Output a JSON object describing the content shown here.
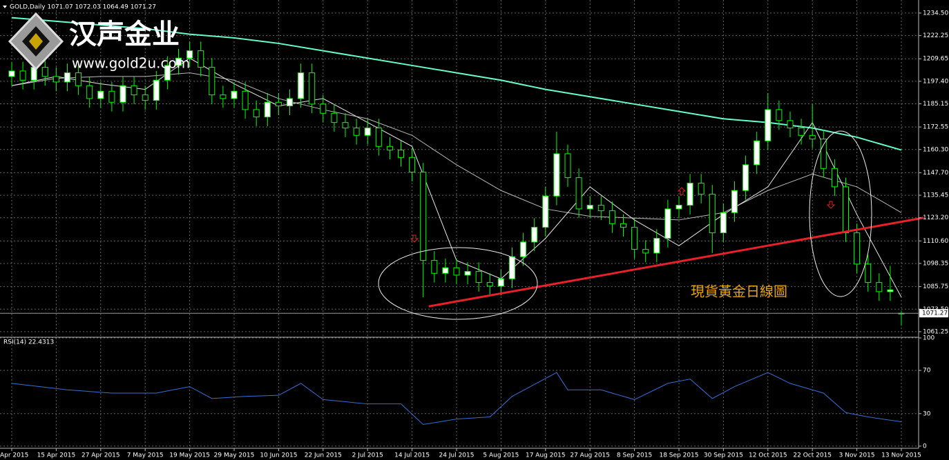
{
  "logo": {
    "name": "汉声金业",
    "url": "www.gold2u.com"
  },
  "annotation": "現貨黃金日線圖",
  "chart_data": [
    {
      "type": "candlestick",
      "title": "GOLD,Daily 1071.07 1072.03 1064.49 1071.27",
      "up_color": "#ffffff",
      "down_color": "#000000",
      "wick_color": "#00ff00",
      "grid": true,
      "categories": [
        "Apr 2015",
        null,
        null,
        null,
        "15 Apr 2015",
        null,
        null,
        null,
        "27 Apr 2015",
        null,
        null,
        null,
        "7 May 2015",
        null,
        null,
        null,
        "19 May 2015",
        null,
        null,
        null,
        "29 May 2015",
        null,
        null,
        null,
        "10 Jun 2015",
        null,
        null,
        null,
        "22 Jun 2015",
        null,
        null,
        null,
        "2 Jul 2015",
        null,
        null,
        null,
        "14 Jul 2015",
        null,
        null,
        null,
        "24 Jul 2015",
        null,
        null,
        null,
        "5 Aug 2015",
        null,
        null,
        null,
        "17 Aug 2015",
        null,
        null,
        null,
        "27 Aug 2015",
        null,
        null,
        null,
        "8 Sep 2015",
        null,
        null,
        null,
        "18 Sep 2015",
        null,
        null,
        null,
        "30 Sep 2015",
        null,
        null,
        null,
        "12 Oct 2015",
        null,
        null,
        null,
        "22 Oct 2015",
        null,
        null,
        null,
        "3 Nov 2015",
        null,
        null,
        null,
        "13 Nov 2015"
      ],
      "open": [
        1200,
        1203,
        1198,
        1205,
        1200,
        1197,
        1202,
        1195,
        1188,
        1192,
        1186,
        1195,
        1190,
        1187,
        1198,
        1206,
        1210,
        1214,
        1205,
        1190,
        1188,
        1192,
        1182,
        1178,
        1186,
        1184,
        1188,
        1202,
        1185,
        1180,
        1175,
        1172,
        1168,
        1172,
        1162,
        1160,
        1156,
        1148,
        1100,
        1093,
        1096,
        1092,
        1094,
        1088,
        1086,
        1090,
        1102,
        1110,
        1118,
        1135,
        1158,
        1145,
        1128,
        1130,
        1127,
        1120,
        1118,
        1106,
        1104,
        1112,
        1128,
        1130,
        1142,
        1136,
        1115,
        1126,
        1138,
        1152,
        1165,
        1182,
        1176,
        1172,
        1168,
        1166,
        1150,
        1140,
        1115,
        1098,
        1088,
        1083,
        1071.07
      ],
      "high": [
        1208,
        1208,
        1210,
        1210,
        1205,
        1207,
        1207,
        1200,
        1197,
        1197,
        1200,
        1200,
        1195,
        1203,
        1211,
        1215,
        1219,
        1219,
        1210,
        1195,
        1197,
        1197,
        1187,
        1191,
        1191,
        1193,
        1207,
        1207,
        1190,
        1185,
        1180,
        1177,
        1177,
        1177,
        1167,
        1165,
        1161,
        1153,
        1105,
        1101,
        1101,
        1099,
        1099,
        1093,
        1095,
        1107,
        1115,
        1123,
        1140,
        1170,
        1163,
        1150,
        1135,
        1135,
        1132,
        1125,
        1123,
        1111,
        1117,
        1133,
        1135,
        1147,
        1147,
        1141,
        1131,
        1143,
        1157,
        1170,
        1191,
        1187,
        1181,
        1177,
        1185,
        1171,
        1155,
        1145,
        1120,
        1103,
        1093,
        1097,
        1072.03
      ],
      "low": [
        1195,
        1193,
        1193,
        1195,
        1192,
        1192,
        1190,
        1183,
        1183,
        1181,
        1181,
        1185,
        1182,
        1182,
        1193,
        1201,
        1205,
        1200,
        1185,
        1183,
        1183,
        1177,
        1173,
        1173,
        1179,
        1179,
        1183,
        1180,
        1175,
        1170,
        1167,
        1163,
        1163,
        1157,
        1155,
        1151,
        1143,
        1080,
        1088,
        1088,
        1087,
        1087,
        1083,
        1081,
        1081,
        1085,
        1097,
        1105,
        1113,
        1130,
        1140,
        1123,
        1123,
        1122,
        1115,
        1113,
        1101,
        1099,
        1099,
        1107,
        1123,
        1125,
        1131,
        1104,
        1110,
        1121,
        1133,
        1147,
        1160,
        1171,
        1167,
        1163,
        1161,
        1145,
        1135,
        1110,
        1093,
        1083,
        1078,
        1078,
        1064.49
      ],
      "close": [
        1203,
        1198,
        1205,
        1200,
        1197,
        1202,
        1195,
        1188,
        1192,
        1186,
        1195,
        1190,
        1187,
        1198,
        1206,
        1210,
        1214,
        1205,
        1190,
        1188,
        1192,
        1182,
        1178,
        1186,
        1184,
        1188,
        1202,
        1185,
        1180,
        1175,
        1172,
        1168,
        1172,
        1162,
        1160,
        1156,
        1148,
        1100,
        1093,
        1096,
        1092,
        1094,
        1088,
        1086,
        1090,
        1102,
        1110,
        1118,
        1135,
        1158,
        1145,
        1128,
        1130,
        1127,
        1120,
        1118,
        1106,
        1104,
        1112,
        1128,
        1130,
        1142,
        1136,
        1115,
        1126,
        1138,
        1152,
        1165,
        1182,
        1176,
        1172,
        1168,
        1166,
        1150,
        1140,
        1115,
        1098,
        1088,
        1083,
        1084,
        1071.27
      ],
      "lines": [
        {
          "color": "#66ffcc",
          "x": [
            0,
            4,
            8,
            12,
            16,
            20,
            24,
            28,
            32,
            36,
            40,
            44,
            48,
            52,
            56,
            60,
            64,
            68,
            72,
            76,
            80
          ],
          "values": [
            1232,
            1230,
            1228,
            1226,
            1223,
            1221,
            1218,
            1214,
            1210,
            1206,
            1202,
            1198,
            1193,
            1189,
            1185,
            1181,
            1177,
            1175,
            1172,
            1167,
            1160
          ]
        },
        {
          "color": "#bbbbbb",
          "x": [
            0,
            4,
            8,
            12,
            16,
            20,
            24,
            28,
            32,
            36,
            40,
            44,
            48,
            52,
            56,
            60,
            64,
            68,
            72,
            76,
            80
          ],
          "values": [
            1195,
            1199,
            1200,
            1200,
            1202,
            1198,
            1188,
            1182,
            1177,
            1168,
            1152,
            1138,
            1128,
            1124,
            1123,
            1122,
            1126,
            1138,
            1147,
            1140,
            1126
          ]
        },
        {
          "color": "#e8e8e8",
          "x": [
            0,
            4,
            8,
            12,
            16,
            20,
            24,
            28,
            32,
            36,
            40,
            44,
            48,
            52,
            56,
            60,
            64,
            68,
            72,
            76,
            80
          ],
          "values": [
            1195,
            1200,
            1196,
            1193,
            1210,
            1196,
            1184,
            1188,
            1175,
            1162,
            1100,
            1090,
            1112,
            1140,
            1122,
            1108,
            1125,
            1140,
            1175,
            1125,
            1080
          ]
        }
      ],
      "trendline": {
        "color": "#e8202a",
        "x": [
          37.5,
          82
        ],
        "values": [
          1075,
          1123.2
        ]
      },
      "ylim": [
        1058.6,
        1240.1
      ],
      "yticks": [
        {
          "value": 1234.5,
          "label": "1234.50"
        },
        1222.25,
        1209.65,
        {
          "value": 1197.4,
          "label": "1197.40"
        },
        1185.15,
        1172.55,
        {
          "value": 1160.3,
          "label": "1160.30"
        },
        {
          "value": 1147.7,
          "label": "1147.70"
        },
        1135.45,
        {
          "value": 1123.2,
          "label": "1123.20"
        },
        {
          "value": 1110.6,
          "label": "1110.60"
        },
        1098.35,
        1085.75,
        {
          "value": 1073.5,
          "label": "1073.50"
        },
        1061.25
      ]
    },
    {
      "type": "line",
      "title": "RSI(14) 22.4313",
      "color": "#3a6fd8",
      "grid": true,
      "x": [
        0,
        5,
        9,
        13,
        16,
        18,
        21,
        24,
        26,
        28,
        32,
        35,
        37,
        40,
        43,
        45,
        49,
        50,
        53,
        56,
        59,
        61,
        63,
        65,
        68,
        70,
        73,
        75,
        77,
        80
      ],
      "values": [
        58,
        52,
        49,
        49,
        55,
        44,
        46,
        47,
        58,
        43,
        39,
        39,
        20,
        25,
        27,
        46,
        68,
        52,
        52,
        43,
        58,
        62,
        44,
        55,
        68,
        58,
        49,
        31,
        27,
        22.4313
      ],
      "ylim": [
        -2,
        100
      ],
      "yticks": [
        0,
        30,
        70,
        100
      ]
    }
  ]
}
